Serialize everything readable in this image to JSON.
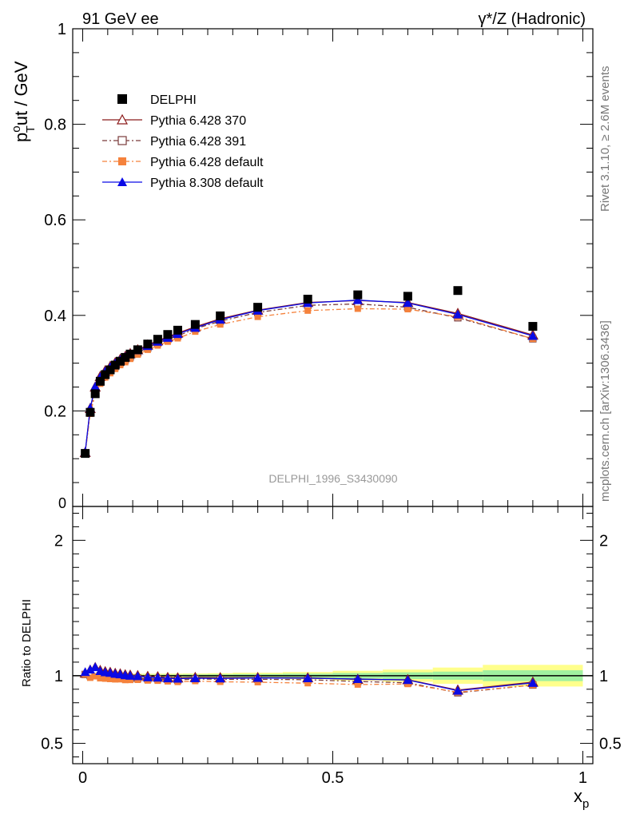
{
  "header": {
    "left_title": "91 GeV ee",
    "right_title": "γ*/Z (Hadronic)"
  },
  "side_text": {
    "rivet": "Rivet 3.1.10, ≥ 2.6M events",
    "mcplots": "mcplots.cern.ch [arXiv:1306.3436]"
  },
  "analysis_label": "DELPHI_1996_S3430090",
  "ratio_ylabel": "Ratio to DELPHI",
  "colors": {
    "data": "#000000",
    "p370": "#8b1a1a",
    "p391": "#7a3b3b",
    "pdef6": "#f5823c",
    "p8": "#0a0ae6",
    "band_inner": "#a0f0a0",
    "band_outer": "#ffff8c"
  },
  "chart_data": [
    {
      "type": "scatter",
      "title": "",
      "ylabel_main": "p",
      "ylabel_sup": "o",
      "ylabel_sub": "T",
      "ylabel_rest": "ut / GeV",
      "xlabel_main": "x",
      "xlabel_sub": "p",
      "xlim": [
        -0.02,
        1.02
      ],
      "ylim": [
        0,
        1.0
      ],
      "yticks": [
        {
          "v": 0.2,
          "label": "0.2"
        },
        {
          "v": 0.4,
          "label": "0.4"
        },
        {
          "v": 0.6,
          "label": "0.6"
        },
        {
          "v": 0.8,
          "label": "0.8"
        },
        {
          "v": 1.0,
          "label": "1"
        }
      ],
      "ytick_zero_label": "0",
      "x": [
        0.005,
        0.015,
        0.025,
        0.035,
        0.045,
        0.055,
        0.065,
        0.075,
        0.085,
        0.095,
        0.11,
        0.13,
        0.15,
        0.17,
        0.19,
        0.225,
        0.275,
        0.35,
        0.45,
        0.55,
        0.65,
        0.75,
        0.9
      ],
      "series": [
        {
          "name": "DELPHI",
          "marker": "square-filled",
          "color_key": "data",
          "values": [
            0.111,
            0.197,
            0.236,
            0.262,
            0.276,
            0.286,
            0.296,
            0.304,
            0.312,
            0.319,
            0.328,
            0.34,
            0.35,
            0.36,
            0.369,
            0.381,
            0.399,
            0.417,
            0.434,
            0.443,
            0.44,
            0.452,
            0.377
          ]
        },
        {
          "name": "Pythia 6.428 370",
          "marker": "triangle-open",
          "color_key": "p370",
          "dash": "",
          "values": [
            0.113,
            0.205,
            0.25,
            0.272,
            0.284,
            0.293,
            0.301,
            0.308,
            0.314,
            0.32,
            0.328,
            0.338,
            0.347,
            0.355,
            0.363,
            0.376,
            0.393,
            0.411,
            0.427,
            0.431,
            0.427,
            0.404,
            0.359
          ]
        },
        {
          "name": "Pythia 6.428 391",
          "marker": "square-open",
          "color_key": "p391",
          "dash": "6,3,2,3",
          "values": [
            0.112,
            0.197,
            0.24,
            0.262,
            0.275,
            0.285,
            0.293,
            0.301,
            0.307,
            0.313,
            0.322,
            0.332,
            0.342,
            0.35,
            0.357,
            0.372,
            0.388,
            0.406,
            0.421,
            0.424,
            0.417,
            0.395,
            0.351
          ]
        },
        {
          "name": "Pythia 6.428 default",
          "marker": "square-filled",
          "color_key": "pdef6",
          "dash": "6,3,2,3",
          "values": [
            0.112,
            0.194,
            0.235,
            0.257,
            0.27,
            0.279,
            0.288,
            0.296,
            0.302,
            0.309,
            0.318,
            0.328,
            0.337,
            0.345,
            0.352,
            0.366,
            0.381,
            0.397,
            0.41,
            0.414,
            0.413,
            0.397,
            0.351
          ]
        },
        {
          "name": "Pythia 8.308 default",
          "marker": "triangle-filled",
          "color_key": "p8",
          "dash": "",
          "values": [
            0.114,
            0.206,
            0.251,
            0.271,
            0.283,
            0.292,
            0.3,
            0.307,
            0.313,
            0.319,
            0.327,
            0.336,
            0.345,
            0.353,
            0.361,
            0.374,
            0.391,
            0.41,
            0.426,
            0.432,
            0.426,
            0.402,
            0.357
          ]
        }
      ],
      "legend_position": "top-left"
    },
    {
      "type": "scatter",
      "title": "",
      "ylabel": "Ratio to DELPHI",
      "xlim": [
        -0.02,
        1.02
      ],
      "ylim": [
        0.35,
        2.25
      ],
      "xticks": [
        {
          "v": 0,
          "label": "0"
        },
        {
          "v": 0.5,
          "label": "0.5"
        },
        {
          "v": 1.0,
          "label": "1"
        }
      ],
      "yticks": [
        {
          "v": 0.5,
          "label": "0.5"
        },
        {
          "v": 1.0,
          "label": "1"
        },
        {
          "v": 2.0,
          "label": "2"
        }
      ],
      "band_x_edges": [
        0.0,
        0.01,
        0.02,
        0.03,
        0.04,
        0.05,
        0.06,
        0.07,
        0.08,
        0.09,
        0.1,
        0.12,
        0.14,
        0.16,
        0.18,
        0.2,
        0.25,
        0.3,
        0.4,
        0.5,
        0.6,
        0.7,
        0.8,
        1.0
      ],
      "band_inner": [
        0.008,
        0.008,
        0.008,
        0.008,
        0.008,
        0.008,
        0.008,
        0.008,
        0.008,
        0.008,
        0.008,
        0.008,
        0.008,
        0.008,
        0.008,
        0.009,
        0.01,
        0.012,
        0.015,
        0.02,
        0.025,
        0.03,
        0.04
      ],
      "band_outer": [
        0.015,
        0.015,
        0.015,
        0.015,
        0.015,
        0.015,
        0.015,
        0.015,
        0.015,
        0.015,
        0.015,
        0.015,
        0.015,
        0.015,
        0.015,
        0.016,
        0.018,
        0.022,
        0.027,
        0.036,
        0.045,
        0.06,
        0.08
      ]
    }
  ]
}
